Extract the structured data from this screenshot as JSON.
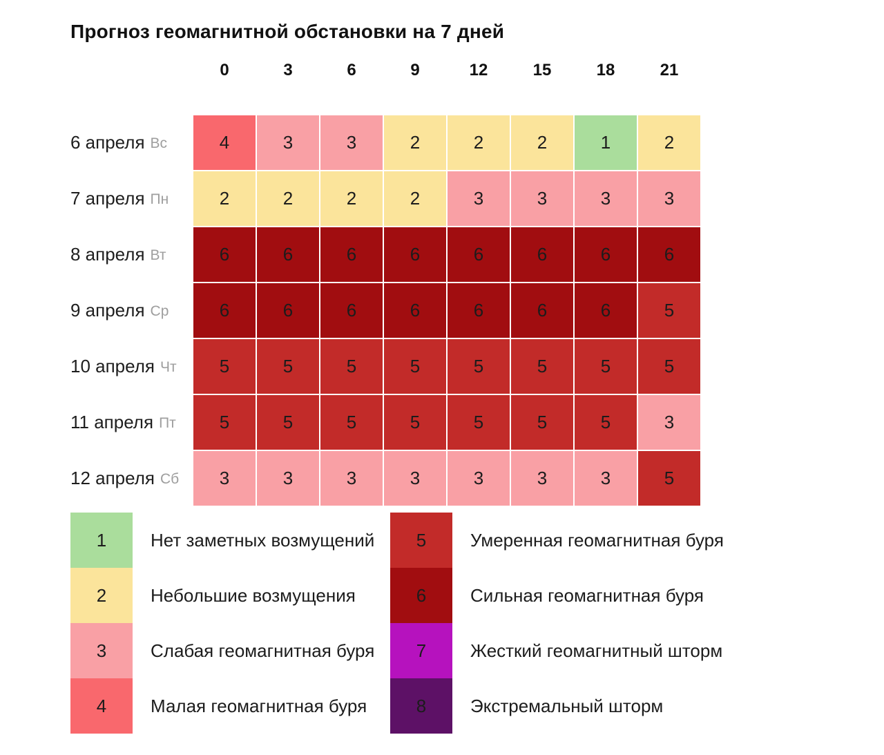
{
  "title": "Прогноз геомагнитной обстановки на 7 дней",
  "chart_data": {
    "type": "heatmap",
    "title": "Прогноз геомагнитной обстановки на 7 дней",
    "x_ticks": [
      "0",
      "3",
      "6",
      "9",
      "12",
      "15",
      "18",
      "21"
    ],
    "rows": [
      {
        "date": "6 апреля",
        "day": "Вс",
        "values": [
          4,
          3,
          3,
          2,
          2,
          2,
          1,
          2
        ]
      },
      {
        "date": "7 апреля",
        "day": "Пн",
        "values": [
          2,
          2,
          2,
          2,
          3,
          3,
          3,
          3
        ]
      },
      {
        "date": "8 апреля",
        "day": "Вт",
        "values": [
          6,
          6,
          6,
          6,
          6,
          6,
          6,
          6
        ]
      },
      {
        "date": "9 апреля",
        "day": "Ср",
        "values": [
          6,
          6,
          6,
          6,
          6,
          6,
          6,
          5
        ]
      },
      {
        "date": "10 апреля",
        "day": "Чт",
        "values": [
          5,
          5,
          5,
          5,
          5,
          5,
          5,
          5
        ]
      },
      {
        "date": "11 апреля",
        "day": "Пт",
        "values": [
          5,
          5,
          5,
          5,
          5,
          5,
          5,
          3
        ]
      },
      {
        "date": "12 апреля",
        "day": "Сб",
        "values": [
          3,
          3,
          3,
          3,
          3,
          3,
          3,
          5
        ]
      }
    ],
    "scale": [
      {
        "level": "1",
        "label": "Нет заметных возмущений",
        "color": "#aadd9c"
      },
      {
        "level": "2",
        "label": "Небольшие возмущения",
        "color": "#fbe49b"
      },
      {
        "level": "3",
        "label": "Слабая геомагнитная буря",
        "color": "#f9a0a5"
      },
      {
        "level": "4",
        "label": "Малая геомагнитная буря",
        "color": "#f9686d"
      },
      {
        "level": "5",
        "label": "Умеренная геомагнитная буря",
        "color": "#c22b29"
      },
      {
        "level": "6",
        "label": "Сильная геомагнитная буря",
        "color": "#a10d10"
      },
      {
        "level": "7",
        "label": "Жесткий геомагнитный шторм",
        "color": "#b612be"
      },
      {
        "level": "8",
        "label": "Экстремальный шторм",
        "color": "#5d1166"
      }
    ],
    "legend_position": "bottom, two columns (levels 1-4 left, 5-8 right)",
    "grid": "off"
  }
}
